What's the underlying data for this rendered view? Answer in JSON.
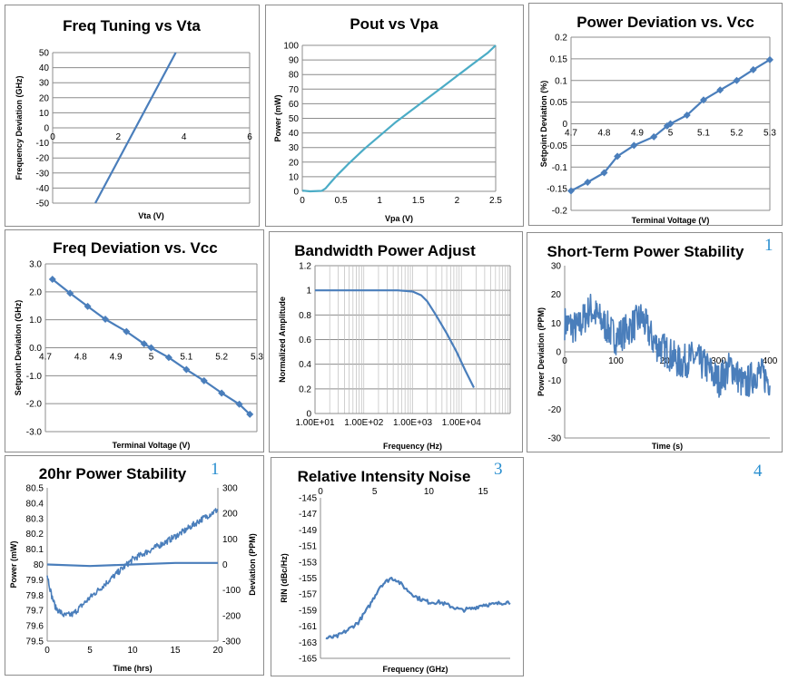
{
  "chart_data": [
    {
      "type": "line",
      "title": "Freq Tuning vs Vta",
      "xlabel": "Vta (V)",
      "ylabel": "Frequency Deviation  (GHz)",
      "xlim": [
        0,
        6
      ],
      "ylim": [
        -50,
        50
      ],
      "xticks": [
        "0",
        "2",
        "4",
        "6"
      ],
      "yticks": [
        "50",
        "40",
        "30",
        "20",
        "10",
        "0",
        "-10",
        "-20",
        "-30",
        "-40",
        "-50"
      ],
      "grid": true,
      "series": [
        {
          "x": [
            1.3,
            3.75
          ],
          "y": [
            -50,
            50
          ]
        }
      ]
    },
    {
      "type": "line",
      "title": "Pout vs Vpa",
      "xlabel": "Vpa (V)",
      "ylabel": "Power (mW)",
      "xlim": [
        0,
        2.5
      ],
      "ylim": [
        0,
        100
      ],
      "xticks": [
        "0",
        "0.5",
        "1",
        "1.5",
        "2",
        "2.5"
      ],
      "yticks": [
        "100",
        "90",
        "80",
        "70",
        "60",
        "50",
        "40",
        "30",
        "20",
        "10",
        "0"
      ],
      "grid": true,
      "series": [
        {
          "x": [
            0,
            0.1,
            0.25,
            0.3,
            0.35,
            0.45,
            0.6,
            0.8,
            1.0,
            1.2,
            1.4,
            1.6,
            1.8,
            2.0,
            2.2,
            2.4,
            2.5
          ],
          "y": [
            0.5,
            0,
            0.3,
            2,
            5,
            11,
            19,
            29,
            38,
            47,
            55,
            63,
            71,
            79,
            87,
            95,
            100
          ]
        }
      ]
    },
    {
      "type": "line",
      "title": "Power Deviation vs. Vcc",
      "xlabel": "Terminal Voltage (V)",
      "ylabel": "Setpoint Deviation (%)",
      "xlim": [
        4.7,
        5.3
      ],
      "ylim": [
        -0.2,
        0.2
      ],
      "xticks": [
        "4.7",
        "4.8",
        "4.9",
        "5",
        "5.1",
        "5.2",
        "5.3"
      ],
      "yticks": [
        "0.2",
        "0.15",
        "0.1",
        "0.05",
        "0",
        "-0.05",
        "-0.1",
        "-0.15",
        "-0.2"
      ],
      "grid": true,
      "series": [
        {
          "x": [
            4.7,
            4.75,
            4.8,
            4.84,
            4.89,
            4.95,
            4.99,
            5.0,
            5.05,
            5.1,
            5.15,
            5.2,
            5.25,
            5.3
          ],
          "y": [
            -0.155,
            -0.135,
            -0.113,
            -0.075,
            -0.05,
            -0.03,
            -0.005,
            0.0,
            0.02,
            0.055,
            0.078,
            0.1,
            0.125,
            0.148
          ]
        }
      ]
    },
    {
      "type": "line",
      "title": "Freq Deviation vs. Vcc",
      "xlabel": "Terminal Voltage (V)",
      "ylabel": "Setpoint Deviation (GHz)",
      "xlim": [
        4.7,
        5.3
      ],
      "ylim": [
        -3,
        3
      ],
      "xticks": [
        "4.7",
        "4.8",
        "4.9",
        "5",
        "5.1",
        "5.2",
        "5.3"
      ],
      "yticks": [
        "3.0",
        "2.0",
        "1.0",
        "0.0",
        "-1.0",
        "-2.0",
        "-3.0"
      ],
      "grid": true,
      "series": [
        {
          "x": [
            4.72,
            4.77,
            4.82,
            4.87,
            4.93,
            4.98,
            5.0,
            5.05,
            5.1,
            5.15,
            5.2,
            5.25,
            5.28
          ],
          "y": [
            2.45,
            1.95,
            1.48,
            1.02,
            0.58,
            0.14,
            0.0,
            -0.35,
            -0.78,
            -1.18,
            -1.62,
            -2.02,
            -2.38
          ]
        }
      ]
    },
    {
      "type": "line",
      "title": "Bandwidth Power Adjust",
      "xlabel": "Frequency (Hz)",
      "ylabel": "Normalized Amplitude",
      "log_x": true,
      "xlim": [
        10,
        100000
      ],
      "ylim": [
        0,
        1.2
      ],
      "xticks": [
        "1.00E+01",
        "1.00E+02",
        "1.00E+03",
        "1.00E+04"
      ],
      "yticks": [
        "1.2",
        "1",
        "0.8",
        "0.6",
        "0.4",
        "0.2",
        "0"
      ],
      "grid": true,
      "series": [
        {
          "x": [
            10,
            100,
            500,
            1000,
            1500,
            2000,
            3000,
            5000,
            8000,
            12000,
            18000
          ],
          "y": [
            1,
            1,
            1.0,
            0.99,
            0.96,
            0.91,
            0.8,
            0.65,
            0.5,
            0.35,
            0.21
          ]
        }
      ]
    },
    {
      "type": "line",
      "title": "Short-Term Power Stability",
      "xlabel": "Time (s)",
      "ylabel": "Power Deviation (PPM)",
      "xlim": [
        0,
        400
      ],
      "ylim": [
        -30,
        30
      ],
      "xticks": [
        "0",
        "100",
        "200",
        "300",
        "400"
      ],
      "yticks": [
        "30",
        "20",
        "10",
        "0",
        "-10",
        "-20",
        "-30"
      ],
      "grid": false,
      "series": [
        {
          "x": [
            0,
            25,
            50,
            75,
            100,
            125,
            150,
            175,
            200,
            225,
            250,
            275,
            300,
            325,
            350,
            375,
            400
          ],
          "y": [
            10,
            8,
            15,
            10,
            5,
            8,
            12,
            3,
            0,
            -4,
            -2,
            -5,
            -10,
            -5,
            -12,
            -7,
            -10
          ]
        }
      ]
    },
    {
      "type": "line",
      "title": "20hr Power Stability",
      "xlabel": "Time (hrs)",
      "ylabel": "Power (mW)",
      "y2label": "Deviation (PPM)",
      "xlim": [
        0,
        20
      ],
      "ylim": [
        79.5,
        80.5
      ],
      "y2lim": [
        -300,
        300
      ],
      "xticks": [
        "0",
        "5",
        "10",
        "15",
        "20"
      ],
      "yticks": [
        "80.5",
        "80.4",
        "80.3",
        "80.2",
        "80.1",
        "80",
        "79.9",
        "79.8",
        "79.7",
        "79.6",
        "79.5"
      ],
      "y2ticks": [
        "300",
        "200",
        "100",
        "0",
        "-100",
        "-200",
        "-300"
      ],
      "grid": false,
      "series": [
        {
          "axis": "y",
          "x": [
            0,
            5,
            10,
            15,
            20
          ],
          "y": [
            80.0,
            79.99,
            80.0,
            80.01,
            80.01
          ]
        },
        {
          "axis": "y2",
          "x": [
            0,
            0.5,
            1,
            2,
            3,
            5,
            7,
            9,
            10,
            12,
            14,
            16,
            18,
            20
          ],
          "y": [
            -40,
            -120,
            -170,
            -200,
            -195,
            -130,
            -70,
            -10,
            20,
            55,
            90,
            130,
            175,
            215
          ]
        }
      ]
    },
    {
      "type": "line",
      "title": "Relative Intensity Noise",
      "xlabel": "Frequency (GHz)",
      "ylabel": "RIN (dBc/Hz)",
      "xlim": [
        0,
        17.5
      ],
      "ylim": [
        -165,
        -145
      ],
      "xticks": [
        "0",
        "5",
        "10",
        "15"
      ],
      "yticks": [
        "-145",
        "-147",
        "-149",
        "-151",
        "-153",
        "-155",
        "-157",
        "-159",
        "-161",
        "-163",
        "-165"
      ],
      "grid": false,
      "series": [
        {
          "x": [
            0.5,
            1.5,
            2.5,
            3.5,
            4.5,
            5.5,
            6.5,
            7.0,
            8.0,
            9.0,
            10.0,
            11.0,
            12.0,
            13.0,
            14.0,
            15.0,
            16.0,
            17.0,
            17.5
          ],
          "y": [
            -162.5,
            -162.3,
            -161.5,
            -160.5,
            -158.5,
            -156,
            -155,
            -155.2,
            -156.5,
            -157.5,
            -158,
            -158,
            -158.5,
            -159,
            -158.8,
            -158.3,
            -158.3,
            -158,
            -158
          ]
        }
      ]
    }
  ],
  "notes": [
    "1",
    "1",
    "3",
    "4"
  ],
  "colors": {
    "line": "#4a7ebb",
    "teal": "#4bacc6",
    "grid": "#8c8c8c"
  }
}
